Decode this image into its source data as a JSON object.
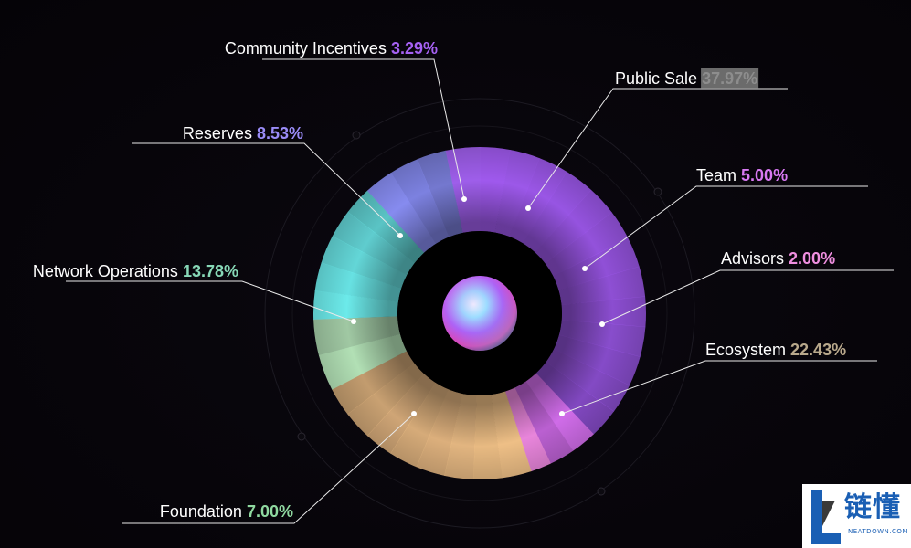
{
  "chart_data": {
    "type": "pie",
    "variant": "donut",
    "slices": [
      {
        "label": "Public Sale",
        "value_text": "37.97%",
        "value": 37.97,
        "color": "#a45cf5",
        "value_color": "#8d8d8d",
        "highlighted": true
      },
      {
        "label": "Team",
        "value_text": "5.00%",
        "value": 5.0,
        "color": "#d66ff0",
        "value_color": "#d879f2"
      },
      {
        "label": "Advisors",
        "value_text": "2.00%",
        "value": 2.0,
        "color": "#f089e2",
        "value_color": "#f08fe0"
      },
      {
        "label": "Ecosystem",
        "value_text": "22.43%",
        "value": 22.43,
        "color": "#f6c58a",
        "value_color": "#b9a98c"
      },
      {
        "label": "Foundation",
        "value_text": "7.00%",
        "value": 7.0,
        "color": "#b8e7bb",
        "value_color": "#8fd9a0"
      },
      {
        "label": "Network Operations",
        "value_text": "13.78%",
        "value": 13.78,
        "color": "#6ff2f2",
        "value_color": "#87d8b7"
      },
      {
        "label": "Reserves",
        "value_text": "8.53%",
        "value": 8.53,
        "color": "#8a8ff7",
        "value_color": "#9a8cf7"
      },
      {
        "label": "Community Incentives",
        "value_text": "3.29%",
        "value": 3.29,
        "color": "#a361f2",
        "value_color": "#a561f2"
      }
    ],
    "legend": "leader-line labels around the donut"
  },
  "colors": {
    "background": "#07050a",
    "label_text": "#ffffff",
    "leader_line": "#e9e9e9",
    "highlight_bg": "#6b6b6b"
  },
  "watermark": {
    "brand_cn": "链懂",
    "brand_en": "NEATDOWN.COM"
  }
}
